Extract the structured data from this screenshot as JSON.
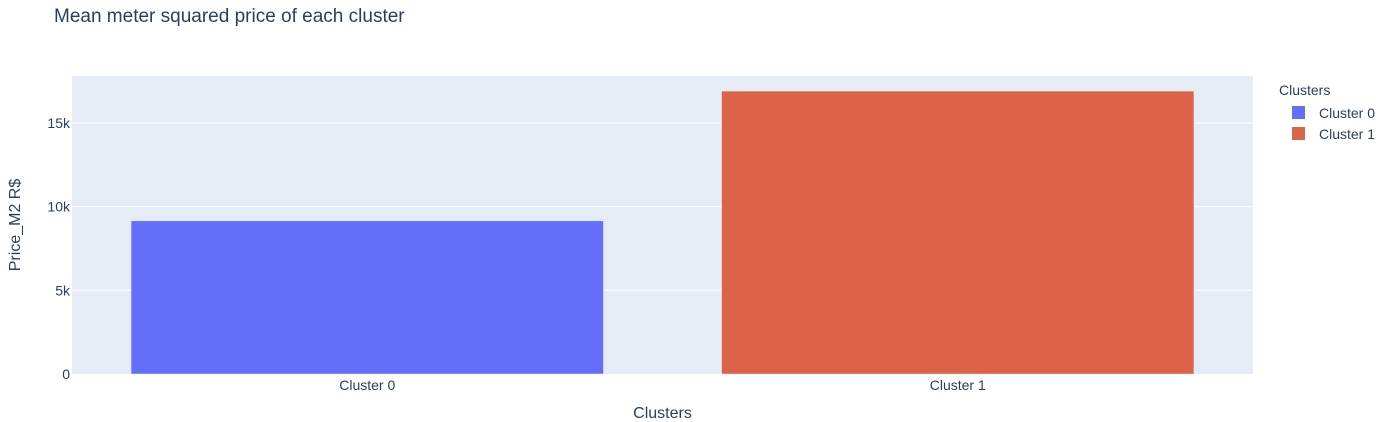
{
  "chart_data": {
    "type": "bar",
    "title": "Mean meter squared price of each cluster",
    "xlabel": "Clusters",
    "ylabel": "Price_M2 R$",
    "categories": [
      "Cluster 0",
      "Cluster 1"
    ],
    "series": [
      {
        "name": "Cluster 0",
        "category": "Cluster 0",
        "value": 9150,
        "color": "#636efa"
      },
      {
        "name": "Cluster 1",
        "category": "Cluster 1",
        "value": 16900,
        "color": "#dd624a"
      }
    ],
    "ylim": [
      0,
      17800
    ],
    "yticks": [
      0,
      5000,
      10000,
      15000
    ],
    "ytick_labels": [
      "0",
      "5k",
      "10k",
      "15k"
    ],
    "legend": {
      "title": "Clusters",
      "placement": "right"
    },
    "grid": true,
    "plot_background": "#e5ecf6",
    "grid_color": "#ffffff"
  }
}
